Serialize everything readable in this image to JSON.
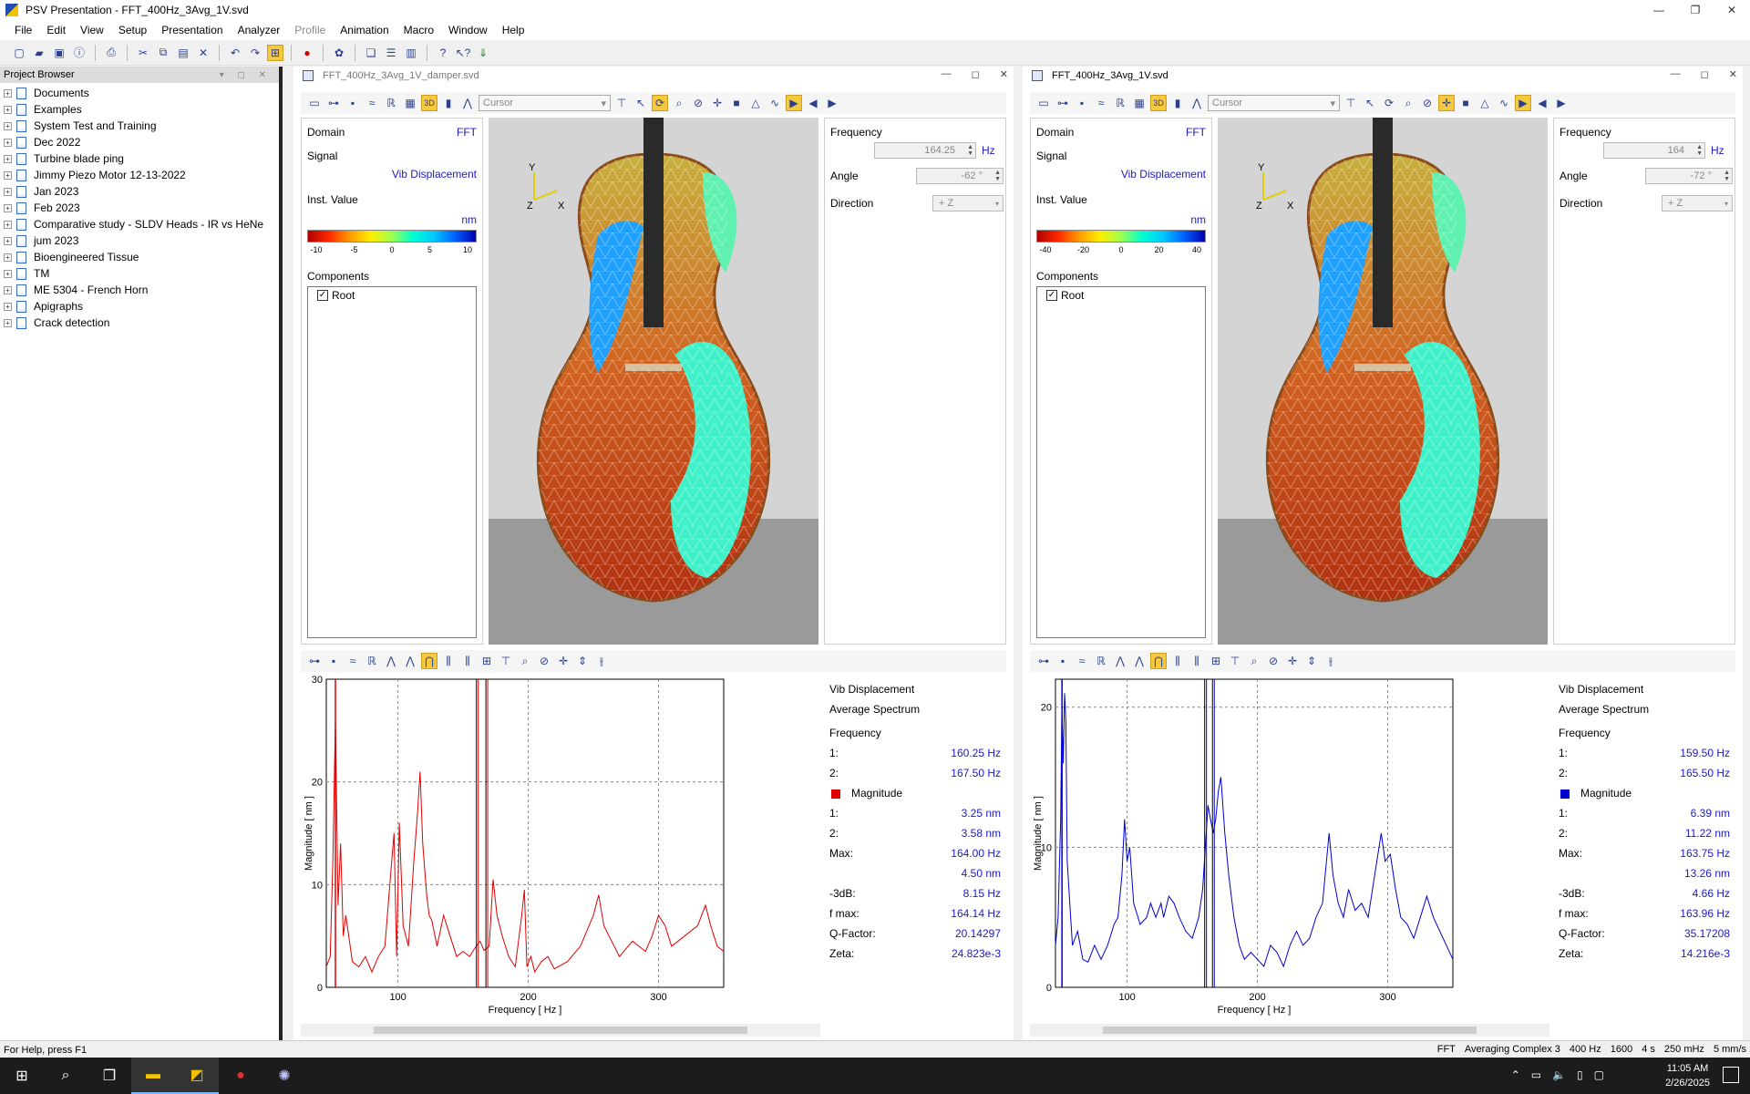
{
  "window": {
    "title": "PSV Presentation - FFT_400Hz_3Avg_1V.svd"
  },
  "menu": [
    "File",
    "Edit",
    "View",
    "Setup",
    "Presentation",
    "Analyzer",
    "Profile",
    "Animation",
    "Macro",
    "Window",
    "Help"
  ],
  "menu_disabled": [
    "Profile"
  ],
  "project_browser": {
    "title": "Project Browser",
    "items": [
      "Documents",
      "Examples",
      "System Test and Training",
      "Dec 2022",
      "Turbine blade ping",
      "Jimmy Piezo Motor 12-13-2022",
      "Jan 2023",
      "Feb 2023",
      "Comparative study - SLDV Heads - IR vs HeNe",
      "jum 2023",
      "Bioengineered Tissue",
      "TM",
      "ME 5304 - French Horn",
      "Apigraphs",
      "Crack detection"
    ]
  },
  "left": {
    "title": "FFT_400Hz_3Avg_1V_damper.svd",
    "cursor": "Cursor",
    "domain_label": "Domain",
    "domain_value": "FFT",
    "signal_label": "Signal",
    "signal_value": "Vib Displacement",
    "inst_label": "Inst. Value",
    "unit": "nm",
    "colorbar_ticks": [
      "-10",
      "-5",
      "0",
      "5",
      "10"
    ],
    "components_label": "Components",
    "root": "Root",
    "frequency_label": "Frequency",
    "frequency_value": "164.25",
    "hz": "Hz",
    "angle_label": "Angle",
    "angle_value": "-62 °",
    "direction_label": "Direction",
    "direction_value": "+ Z",
    "axis_y": "Y",
    "axis_z": "Z",
    "axis_x": "X",
    "spectrum": {
      "title1": "Vib Displacement",
      "title2": "Average Spectrum",
      "freq_label": "Frequency",
      "c1_label": "1:",
      "c1_value": "160.25 Hz",
      "c2_label": "2:",
      "c2_value": "167.50 Hz",
      "mag_label": "Magnitude",
      "m1_label": "1:",
      "m1_value": "3.25 nm",
      "m2_label": "2:",
      "m2_value": "3.58 nm",
      "max_label": "Max:",
      "max_freq": "164.00 Hz",
      "max_val": "4.50 nm",
      "db_label": "-3dB:",
      "db_value": "8.15 Hz",
      "fmax_label": "f max:",
      "fmax_value": "164.14 Hz",
      "q_label": "Q-Factor:",
      "q_value": "20.14297",
      "zeta_label": "Zeta:",
      "zeta_value": "24.823e-3",
      "color": "#e00000"
    }
  },
  "right": {
    "title": "FFT_400Hz_3Avg_1V.svd",
    "cursor": "Cursor",
    "domain_label": "Domain",
    "domain_value": "FFT",
    "signal_label": "Signal",
    "signal_value": "Vib Displacement",
    "inst_label": "Inst. Value",
    "unit": "nm",
    "colorbar_ticks": [
      "-40",
      "-20",
      "0",
      "20",
      "40"
    ],
    "components_label": "Components",
    "root": "Root",
    "frequency_label": "Frequency",
    "frequency_value": "164",
    "hz": "Hz",
    "angle_label": "Angle",
    "angle_value": "-72 °",
    "direction_label": "Direction",
    "direction_value": "+ Z",
    "axis_y": "Y",
    "axis_z": "Z",
    "axis_x": "X",
    "spectrum": {
      "title1": "Vib Displacement",
      "title2": "Average Spectrum",
      "freq_label": "Frequency",
      "c1_label": "1:",
      "c1_value": "159.50 Hz",
      "c2_label": "2:",
      "c2_value": "165.50 Hz",
      "mag_label": "Magnitude",
      "m1_label": "1:",
      "m1_value": "6.39 nm",
      "m2_label": "2:",
      "m2_value": "11.22 nm",
      "max_label": "Max:",
      "max_freq": "163.75 Hz",
      "max_val": "13.26 nm",
      "db_label": "-3dB:",
      "db_value": "4.66 Hz",
      "fmax_label": "f max:",
      "fmax_value": "163.96 Hz",
      "q_label": "Q-Factor:",
      "q_value": "35.17208",
      "zeta_label": "Zeta:",
      "zeta_value": "14.216e-3",
      "color": "#0000d0"
    }
  },
  "chart_data": [
    {
      "type": "line",
      "xlabel": "Frequency [ Hz ]",
      "ylabel": "Magnitude [ nm ]",
      "xlim": [
        45,
        350
      ],
      "ylim": [
        0,
        30
      ],
      "xticks": [
        100,
        200,
        300
      ],
      "yticks": [
        0,
        10,
        20,
        30
      ],
      "grid": true,
      "cursors": [
        160.25,
        167.5
      ],
      "series": [
        {
          "values": [
            [
              45,
              2
            ],
            [
              48,
              3
            ],
            [
              50,
              12
            ],
            [
              52,
              26
            ],
            [
              54,
              8
            ],
            [
              56,
              14
            ],
            [
              58,
              5
            ],
            [
              60,
              7
            ],
            [
              65,
              2.5
            ],
            [
              70,
              2
            ],
            [
              75,
              3
            ],
            [
              80,
              1.5
            ],
            [
              85,
              3
            ],
            [
              90,
              4
            ],
            [
              95,
              12
            ],
            [
              97,
              15
            ],
            [
              99,
              3
            ],
            [
              101,
              16
            ],
            [
              104,
              6
            ],
            [
              108,
              4
            ],
            [
              112,
              12
            ],
            [
              115,
              17
            ],
            [
              117,
              21
            ],
            [
              119,
              14
            ],
            [
              122,
              9
            ],
            [
              124,
              7
            ],
            [
              126,
              6.5
            ],
            [
              130,
              4
            ],
            [
              135,
              7
            ],
            [
              140,
              5
            ],
            [
              145,
              3
            ],
            [
              150,
              3.5
            ],
            [
              155,
              3
            ],
            [
              160,
              4
            ],
            [
              163,
              4.5
            ],
            [
              166,
              3.6
            ],
            [
              170,
              4
            ],
            [
              173,
              10.5
            ],
            [
              176,
              7
            ],
            [
              180,
              5
            ],
            [
              185,
              3
            ],
            [
              190,
              2
            ],
            [
              195,
              7
            ],
            [
              197,
              9.5
            ],
            [
              199,
              2
            ],
            [
              202,
              3
            ],
            [
              205,
              1.5
            ],
            [
              210,
              2.5
            ],
            [
              215,
              3
            ],
            [
              220,
              1.8
            ],
            [
              230,
              2.5
            ],
            [
              240,
              4
            ],
            [
              250,
              7
            ],
            [
              254,
              9
            ],
            [
              258,
              6
            ],
            [
              262,
              5
            ],
            [
              270,
              3
            ],
            [
              280,
              4.5
            ],
            [
              290,
              3.5
            ],
            [
              295,
              5
            ],
            [
              300,
              7
            ],
            [
              305,
              6
            ],
            [
              310,
              4
            ],
            [
              320,
              5
            ],
            [
              330,
              6
            ],
            [
              336,
              8
            ],
            [
              340,
              6
            ],
            [
              345,
              4
            ],
            [
              350,
              3.5
            ]
          ]
        }
      ],
      "color": "#e00000"
    },
    {
      "type": "line",
      "xlabel": "Frequency [ Hz ]",
      "ylabel": "Magnitude [ nm ]",
      "xlim": [
        45,
        350
      ],
      "ylim": [
        0,
        22
      ],
      "xticks": [
        100,
        200,
        300
      ],
      "yticks": [
        0,
        10,
        20
      ],
      "grid": true,
      "cursors": [
        159.5,
        165.5
      ],
      "series": [
        {
          "values": [
            [
              45,
              3
            ],
            [
              47,
              5
            ],
            [
              49,
              12
            ],
            [
              50,
              20
            ],
            [
              51,
              16
            ],
            [
              52,
              21
            ],
            [
              53,
              19
            ],
            [
              54,
              9
            ],
            [
              56,
              6
            ],
            [
              58,
              3
            ],
            [
              62,
              4
            ],
            [
              66,
              2
            ],
            [
              70,
              1.8
            ],
            [
              75,
              3
            ],
            [
              80,
              2
            ],
            [
              85,
              3
            ],
            [
              90,
              4.5
            ],
            [
              93,
              5
            ],
            [
              96,
              8
            ],
            [
              98,
              12
            ],
            [
              100,
              9
            ],
            [
              102,
              10
            ],
            [
              105,
              6
            ],
            [
              110,
              4.5
            ],
            [
              115,
              5
            ],
            [
              118,
              6
            ],
            [
              122,
              5
            ],
            [
              126,
              6
            ],
            [
              128,
              5
            ],
            [
              132,
              6.5
            ],
            [
              136,
              6
            ],
            [
              140,
              5
            ],
            [
              145,
              4
            ],
            [
              150,
              3.5
            ],
            [
              155,
              5
            ],
            [
              158,
              7
            ],
            [
              160,
              10
            ],
            [
              162,
              13
            ],
            [
              164,
              12
            ],
            [
              166,
              11
            ],
            [
              168,
              12
            ],
            [
              170,
              14
            ],
            [
              172,
              15
            ],
            [
              175,
              11
            ],
            [
              178,
              8
            ],
            [
              182,
              5
            ],
            [
              186,
              3
            ],
            [
              190,
              2
            ],
            [
              195,
              2.5
            ],
            [
              200,
              2
            ],
            [
              205,
              1.5
            ],
            [
              210,
              3
            ],
            [
              215,
              2.5
            ],
            [
              220,
              1.5
            ],
            [
              225,
              3
            ],
            [
              230,
              4
            ],
            [
              235,
              3
            ],
            [
              240,
              3.5
            ],
            [
              245,
              5
            ],
            [
              250,
              6
            ],
            [
              255,
              11
            ],
            [
              258,
              8
            ],
            [
              262,
              6
            ],
            [
              266,
              5
            ],
            [
              270,
              7
            ],
            [
              275,
              5.5
            ],
            [
              280,
              6
            ],
            [
              285,
              5
            ],
            [
              290,
              8
            ],
            [
              295,
              11
            ],
            [
              298,
              9
            ],
            [
              302,
              9.5
            ],
            [
              306,
              7
            ],
            [
              310,
              5
            ],
            [
              315,
              4.5
            ],
            [
              320,
              3.5
            ],
            [
              325,
              5
            ],
            [
              330,
              6.5
            ],
            [
              335,
              5
            ],
            [
              340,
              4
            ],
            [
              345,
              3
            ],
            [
              350,
              2
            ]
          ]
        }
      ],
      "color": "#0000d0"
    }
  ],
  "status": {
    "help": "For Help, press F1",
    "items": [
      "FFT",
      "Averaging Complex 3",
      "400 Hz",
      "1600",
      "4 s",
      "250 mHz",
      "5 mm/s"
    ]
  },
  "taskbar": {
    "time": "11:05 AM",
    "date": "2/26/2025"
  }
}
